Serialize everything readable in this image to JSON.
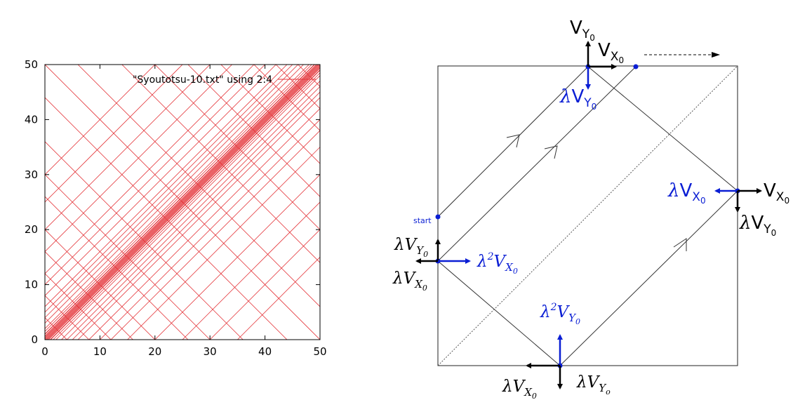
{
  "chart_data": {
    "type": "line",
    "legend": "\"Syoutotsu-10.txt\" using 2:4",
    "legend_position": "top-right",
    "xlim": [
      0,
      50
    ],
    "ylim": [
      0,
      50
    ],
    "xticks": [
      "0",
      "10",
      "20",
      "30",
      "40",
      "50"
    ],
    "yticks": [
      "0",
      "10",
      "20",
      "30",
      "40",
      "50"
    ],
    "grid": false,
    "line_color": "#e4353a",
    "diagonal_offsets": [
      -35,
      -30,
      -25,
      -20,
      -15,
      -12,
      -10,
      -8,
      -6,
      -5,
      -4,
      -3,
      -2,
      -1.5,
      -1,
      -0.6,
      -0.3,
      0,
      0.3,
      0.6,
      1,
      1.5,
      2,
      3,
      4,
      5,
      6,
      8,
      10,
      12,
      16,
      20,
      25,
      30
    ],
    "antidiagonal_sums": [
      4,
      8,
      12,
      16,
      20,
      26,
      30,
      36,
      44,
      50,
      56,
      64,
      70,
      76,
      82,
      88,
      92,
      96
    ]
  },
  "diagram": {
    "start_label": "start",
    "top_vy": {
      "base": "V",
      "sub": "Y",
      "subsub": "0"
    },
    "top_vx": {
      "base": "V",
      "sub": "X",
      "subsub": "0"
    },
    "top_lvy": {
      "pre": "λ",
      "base": "V",
      "sub": "Y",
      "subsub": "0"
    },
    "right_lvx": {
      "pre": "λ",
      "base": "V",
      "sub": "X",
      "subsub": "0"
    },
    "right_vx": {
      "base": "V",
      "sub": "X",
      "subsub": "0"
    },
    "right_lvy": {
      "pre": "λ",
      "base": "V",
      "sub": "Y",
      "subsub": "0"
    },
    "left_lvy": {
      "pre": "λ",
      "base": "V",
      "sub": "Y",
      "subsub": "0"
    },
    "left_l2vx": {
      "pre": "λ",
      "sup": "2",
      "base": "V",
      "sub": "X",
      "subsub": "0"
    },
    "left_lvx": {
      "pre": "λ",
      "base": "V",
      "sub": "X",
      "subsub": "0"
    },
    "bottom_l2vy": {
      "pre": "λ",
      "sup": "2",
      "base": "V",
      "sub": "Y",
      "subsub": "0"
    },
    "bottom_lvx": {
      "pre": "λ",
      "base": "V",
      "sub": "X",
      "subsub": "0"
    },
    "bottom_lvy": {
      "pre": "λ",
      "base": "V",
      "sub": "Y",
      "subsub": "o"
    },
    "colors": {
      "black": "#000000",
      "blue": "#0a1ed4"
    }
  }
}
